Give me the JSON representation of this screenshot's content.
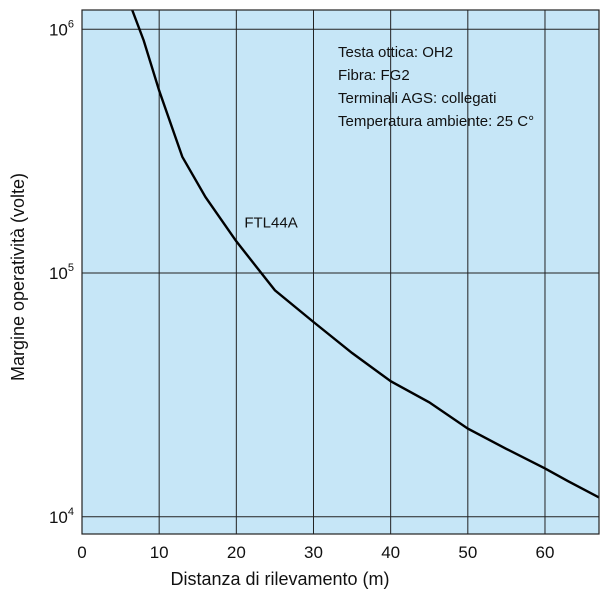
{
  "chart_data": {
    "type": "line",
    "title": "",
    "xlabel": "Distanza di rilevamento (m)",
    "ylabel": "Margine operatività (volte)",
    "xlim": [
      0,
      67
    ],
    "ylim": [
      8500,
      1200000
    ],
    "yscale": "log",
    "grid": true,
    "background_color": "#c6e6f7",
    "line_color": "#000000",
    "x_ticks": [
      {
        "value": 0,
        "label": "0"
      },
      {
        "value": 10,
        "label": "10"
      },
      {
        "value": 20,
        "label": "20"
      },
      {
        "value": 30,
        "label": "30"
      },
      {
        "value": 40,
        "label": "40"
      },
      {
        "value": 50,
        "label": "50"
      },
      {
        "value": 60,
        "label": "60"
      }
    ],
    "y_ticks": [
      {
        "value": 10000,
        "base": "10",
        "exp": "4"
      },
      {
        "value": 100000,
        "base": "10",
        "exp": "5"
      },
      {
        "value": 1000000,
        "base": "10",
        "exp": "6"
      }
    ],
    "series": [
      {
        "name": "FTL44A",
        "x": [
          6.5,
          8,
          10,
          13,
          16,
          20,
          25,
          30,
          35,
          40,
          45,
          50,
          55,
          60,
          63,
          67
        ],
        "y": [
          1200000,
          900000,
          560000,
          300000,
          205000,
          135000,
          85000,
          63000,
          47000,
          36000,
          29500,
          23000,
          19000,
          15800,
          14000,
          12000
        ]
      }
    ],
    "series_label": {
      "text": "FTL44A",
      "x": 24.5,
      "y": 140000
    },
    "annotations": [
      "Testa ottica: OH2",
      "Fibra: FG2",
      "Terminali AGS: collegati",
      "Temperatura ambiente: 25 C°"
    ]
  }
}
